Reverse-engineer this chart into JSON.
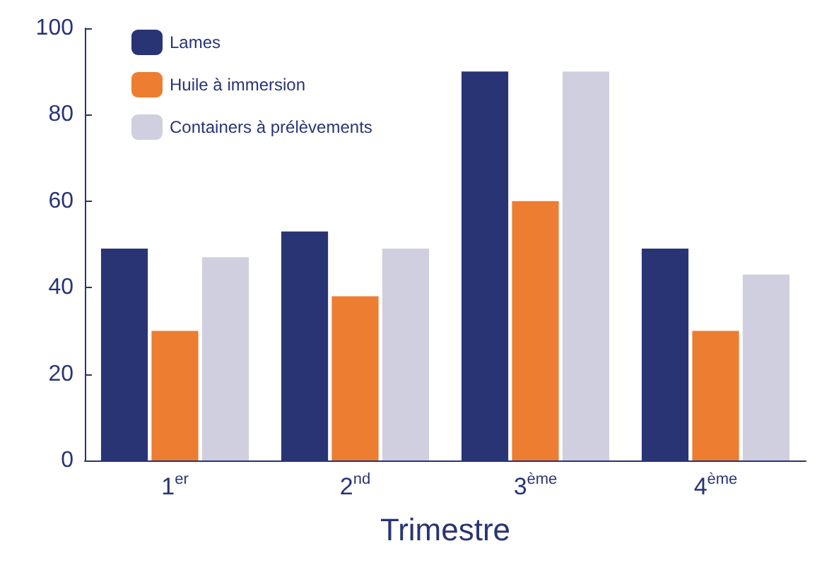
{
  "chart_data": {
    "type": "bar",
    "xlabel": "Trimestre",
    "categories": [
      "1$^{er}$",
      "2$^{nd}$",
      "3$^{ème}$",
      "4$^{ème}$"
    ],
    "series": [
      {
        "name": "Lames",
        "color": "#283474",
        "values": [
          49,
          53,
          90,
          49
        ]
      },
      {
        "name": "Huile à immersion",
        "color": "#ed7d31",
        "values": [
          30,
          38,
          60,
          30
        ]
      },
      {
        "name": "Containers à prélèvements",
        "color": "#cfcfdf",
        "values": [
          47,
          49,
          90,
          43
        ]
      }
    ],
    "ylim": [
      0,
      100
    ],
    "yticks": [
      0,
      20,
      40,
      60,
      80,
      100
    ],
    "grid": false,
    "legend": "top left"
  }
}
